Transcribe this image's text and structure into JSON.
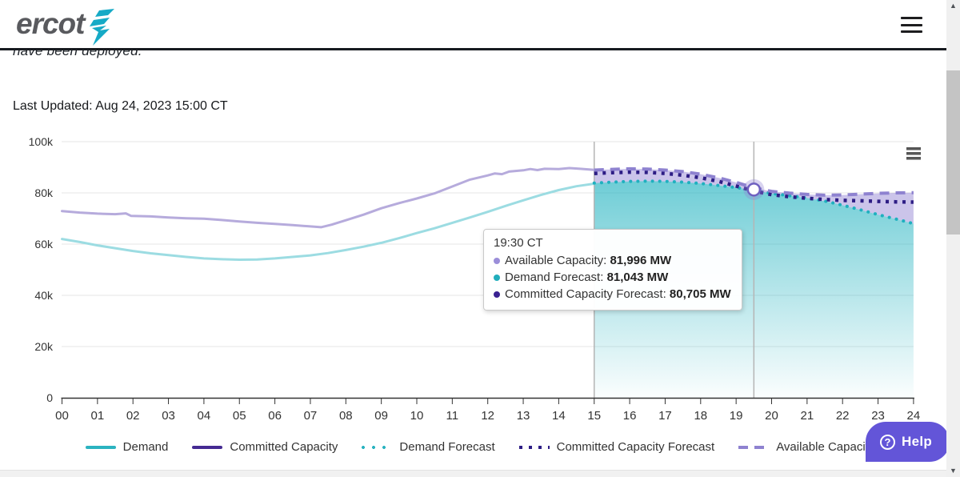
{
  "header": {
    "logo_text": "ercot"
  },
  "page": {
    "clipped_text": "have been deployed.",
    "last_updated": "Last Updated: Aug 24, 2023 15:00 CT"
  },
  "tooltip": {
    "time": "19:30 CT",
    "rows": [
      {
        "label": "Available Capacity: ",
        "value": "81,996 MW",
        "color": "#9b8ed9"
      },
      {
        "label": "Demand Forecast: ",
        "value": "81,043 MW",
        "color": "#22aebc"
      },
      {
        "label": "Committed Capacity Forecast: ",
        "value": "80,705 MW",
        "color": "#3a2292"
      }
    ]
  },
  "legend": [
    {
      "label": "Demand",
      "style": "solid",
      "color": "#2bb3c0"
    },
    {
      "label": "Committed Capacity",
      "style": "solid",
      "color": "#452a92"
    },
    {
      "label": "Demand Forecast",
      "style": "dot-round",
      "color": "#2bb3c0"
    },
    {
      "label": "Committed Capacity Forecast",
      "style": "dot-square",
      "color": "#2d1d85"
    },
    {
      "label": "Available Capacity",
      "style": "dash",
      "color": "#8e82d0"
    }
  ],
  "help_button": {
    "label": "Help",
    "icon": "?",
    "color": "#6355d8"
  },
  "colors": {
    "accent_teal": "#16aac6",
    "grid": "#e6e6e6",
    "axis": "#333333",
    "plotline": "#b5b5b5",
    "band_fill": "rgba(146,132,212,0.48)",
    "area_teal_top": "rgba(41,181,194,0.68)",
    "area_teal_bottom": "rgba(41,181,194,0.02)"
  },
  "chart_data": {
    "type": "line",
    "title": "",
    "xlabel": "",
    "ylabel": "",
    "xlim": [
      0,
      24
    ],
    "ylim": [
      0,
      100000
    ],
    "grid": true,
    "legend_position": "bottom",
    "x_ticks": [
      "00",
      "01",
      "02",
      "03",
      "04",
      "05",
      "06",
      "07",
      "08",
      "09",
      "10",
      "11",
      "12",
      "13",
      "14",
      "15",
      "16",
      "17",
      "18",
      "19",
      "20",
      "21",
      "22",
      "23",
      "24"
    ],
    "y_ticks": [
      {
        "v": 0,
        "label": "0"
      },
      {
        "v": 20000,
        "label": "20k"
      },
      {
        "v": 40000,
        "label": "40k"
      },
      {
        "v": 60000,
        "label": "60k"
      },
      {
        "v": 80000,
        "label": "80k"
      },
      {
        "v": 100000,
        "label": "100k"
      }
    ],
    "forecast_start_hour": 15,
    "hover_hour": 19.5,
    "plotline_hours": [
      15,
      19.5
    ],
    "marker": {
      "x": 19.5,
      "y": 81300
    },
    "series": [
      {
        "name": "Committed Capacity",
        "color": "#b6abdc",
        "dash": "solid",
        "width": 3,
        "points": [
          [
            0,
            72900
          ],
          [
            0.5,
            72300
          ],
          [
            1,
            71900
          ],
          [
            1.5,
            71700
          ],
          [
            1.8,
            72000
          ],
          [
            1.95,
            71000
          ],
          [
            2.5,
            70800
          ],
          [
            3,
            70400
          ],
          [
            3.5,
            70100
          ],
          [
            4,
            69900
          ],
          [
            4.5,
            69400
          ],
          [
            5,
            68800
          ],
          [
            5.5,
            68300
          ],
          [
            6,
            67900
          ],
          [
            6.5,
            67400
          ],
          [
            7,
            66900
          ],
          [
            7.3,
            66600
          ],
          [
            7.6,
            67600
          ],
          [
            8,
            69300
          ],
          [
            8.5,
            71500
          ],
          [
            9,
            74000
          ],
          [
            9.5,
            76000
          ],
          [
            10,
            77800
          ],
          [
            10.5,
            79800
          ],
          [
            11,
            82500
          ],
          [
            11.5,
            85200
          ],
          [
            12,
            86800
          ],
          [
            12.2,
            87600
          ],
          [
            12.4,
            87300
          ],
          [
            12.6,
            88300
          ],
          [
            13,
            88800
          ],
          [
            13.2,
            89300
          ],
          [
            13.4,
            88900
          ],
          [
            13.6,
            89400
          ],
          [
            14,
            89300
          ],
          [
            14.3,
            89700
          ],
          [
            14.6,
            89400
          ],
          [
            15,
            89000
          ]
        ]
      },
      {
        "name": "Demand",
        "color": "#9cdce2",
        "dash": "solid",
        "width": 3,
        "points": [
          [
            0,
            62000
          ],
          [
            0.5,
            60800
          ],
          [
            1,
            59500
          ],
          [
            1.5,
            58400
          ],
          [
            2,
            57300
          ],
          [
            2.5,
            56400
          ],
          [
            3,
            55700
          ],
          [
            3.5,
            55000
          ],
          [
            4,
            54400
          ],
          [
            4.5,
            54100
          ],
          [
            5,
            53900
          ],
          [
            5.5,
            54000
          ],
          [
            6,
            54400
          ],
          [
            6.5,
            55000
          ],
          [
            7,
            55600
          ],
          [
            7.5,
            56500
          ],
          [
            8,
            57700
          ],
          [
            8.5,
            59000
          ],
          [
            9,
            60500
          ],
          [
            9.5,
            62300
          ],
          [
            10,
            64300
          ],
          [
            10.5,
            66200
          ],
          [
            11,
            68300
          ],
          [
            11.5,
            70400
          ],
          [
            12,
            72600
          ],
          [
            12.5,
            74900
          ],
          [
            13,
            77100
          ],
          [
            13.5,
            79200
          ],
          [
            14,
            81100
          ],
          [
            14.5,
            82600
          ],
          [
            15,
            83600
          ]
        ]
      },
      {
        "name": "Demand Forecast",
        "color": "#1fb0bf",
        "dash": "dot-round",
        "width": 4,
        "area": "teal",
        "points": [
          [
            15,
            83800
          ],
          [
            15.5,
            84200
          ],
          [
            16,
            84500
          ],
          [
            16.5,
            84600
          ],
          [
            17,
            84500
          ],
          [
            17.5,
            84200
          ],
          [
            18,
            83700
          ],
          [
            18.5,
            82900
          ],
          [
            19,
            82100
          ],
          [
            19.5,
            81043
          ],
          [
            20,
            79800
          ],
          [
            20.5,
            78900
          ],
          [
            21,
            78000
          ],
          [
            21.5,
            76800
          ],
          [
            22,
            75200
          ],
          [
            22.5,
            73400
          ],
          [
            23,
            71500
          ],
          [
            23.5,
            69800
          ],
          [
            24,
            68000
          ]
        ]
      },
      {
        "name": "Committed Capacity Forecast",
        "color": "#2d1d85",
        "dash": "dot-square",
        "width": 4.5,
        "points": [
          [
            15,
            87600
          ],
          [
            15.5,
            87900
          ],
          [
            16,
            88100
          ],
          [
            16.5,
            88000
          ],
          [
            17,
            87600
          ],
          [
            17.5,
            86900
          ],
          [
            18,
            85900
          ],
          [
            18.5,
            84500
          ],
          [
            19,
            82700
          ],
          [
            19.5,
            80705
          ],
          [
            20,
            79300
          ],
          [
            20.5,
            78500
          ],
          [
            21,
            77900
          ],
          [
            21.5,
            77400
          ],
          [
            22,
            77100
          ],
          [
            22.5,
            76900
          ],
          [
            23,
            76700
          ],
          [
            23.5,
            76500
          ],
          [
            24,
            76400
          ]
        ]
      },
      {
        "name": "Available Capacity",
        "color": "#8e82d0",
        "dash": "dash",
        "width": 4,
        "band_to": "Demand Forecast",
        "points": [
          [
            15,
            88900
          ],
          [
            15.5,
            89200
          ],
          [
            16,
            89400
          ],
          [
            16.5,
            89300
          ],
          [
            17,
            88900
          ],
          [
            17.5,
            88300
          ],
          [
            18,
            87300
          ],
          [
            18.5,
            85900
          ],
          [
            19,
            84100
          ],
          [
            19.5,
            81996
          ],
          [
            20,
            80600
          ],
          [
            20.5,
            79900
          ],
          [
            21,
            79400
          ],
          [
            21.5,
            79100
          ],
          [
            22,
            79200
          ],
          [
            22.5,
            79500
          ],
          [
            23,
            79800
          ],
          [
            23.5,
            80000
          ],
          [
            24,
            80100
          ]
        ]
      }
    ]
  }
}
